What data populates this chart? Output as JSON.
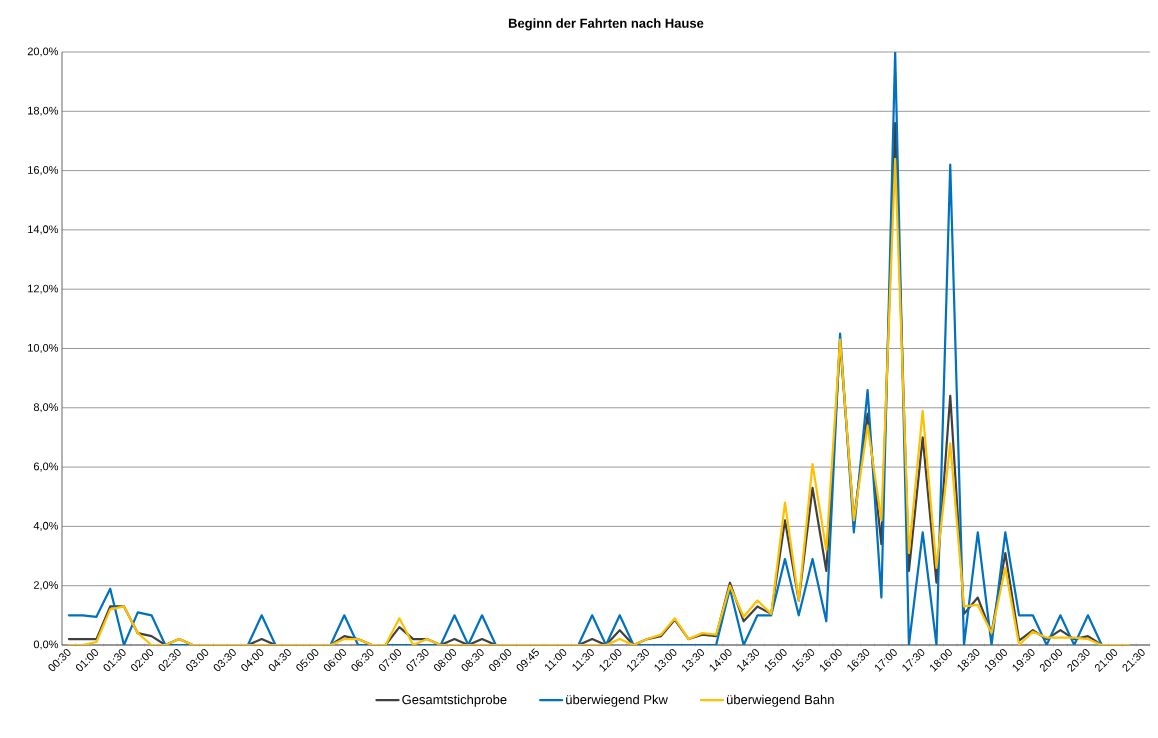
{
  "chart_data": {
    "type": "line",
    "title": "Beginn der Fahrten nach Hause",
    "categories": [
      "00:30",
      null,
      "01:00",
      null,
      "01:30",
      null,
      "02:00",
      null,
      "02:30",
      null,
      "03:00",
      null,
      "03:30",
      null,
      "04:00",
      null,
      "04:30",
      null,
      "05:00",
      null,
      "06:00",
      null,
      "06:30",
      null,
      "07:00",
      null,
      "07:30",
      null,
      "08:00",
      null,
      "08:30",
      null,
      "09:00",
      null,
      "09:45",
      null,
      "11:00",
      null,
      "11:30",
      null,
      "12:00",
      null,
      "12:30",
      null,
      "13:00",
      null,
      "13:30",
      null,
      "14:00",
      null,
      "14:30",
      null,
      "15:00",
      null,
      "15:30",
      null,
      "16:00",
      null,
      "16:30",
      null,
      "17:00",
      null,
      "17:30",
      null,
      "18:00",
      null,
      "18:30",
      null,
      "19:00",
      null,
      "19:30",
      null,
      "20:00",
      null,
      "20:30",
      null,
      "21:00",
      null,
      "21:30"
    ],
    "series": [
      {
        "name": "Gesamtstichprobe",
        "color": "#404040",
        "values": [
          0.2,
          0.2,
          0.2,
          1.3,
          1.3,
          0.4,
          0.3,
          0,
          0.2,
          0,
          0,
          0,
          0,
          0,
          0.2,
          0,
          0,
          0,
          0,
          0,
          0.3,
          0.2,
          0,
          0,
          0.6,
          0.2,
          0.2,
          0,
          0.2,
          0,
          0.2,
          0,
          0,
          0,
          0,
          0,
          0,
          0,
          0.2,
          0,
          0.5,
          0,
          0.2,
          0.3,
          0.85,
          0.2,
          0.35,
          0.3,
          2.1,
          0.8,
          1.3,
          1.05,
          4.2,
          1.5,
          5.3,
          2.5,
          10.2,
          4.2,
          7.8,
          3.4,
          17.6,
          2.5,
          7.0,
          2.1,
          8.4,
          1.05,
          1.6,
          0.4,
          3.1,
          0.15,
          0.5,
          0.2,
          0.5,
          0.2,
          0.3,
          0,
          0,
          0,
          null
        ]
      },
      {
        "name": "überwiegend Pkw",
        "color": "#0070c0",
        "values": [
          1.0,
          1.0,
          0.95,
          1.9,
          0,
          1.1,
          1.0,
          0,
          0,
          0,
          0,
          0,
          0,
          0,
          1.0,
          0,
          0,
          0,
          0,
          0,
          1.0,
          0,
          0,
          0,
          0,
          0,
          0,
          0,
          1.0,
          0,
          1.0,
          0,
          0,
          0,
          0,
          0,
          0,
          0,
          1.0,
          0,
          1.0,
          0,
          0,
          0,
          0,
          0,
          0,
          0,
          1.9,
          0,
          1.0,
          1.0,
          2.9,
          1.0,
          2.9,
          0.8,
          10.5,
          3.8,
          8.6,
          1.6,
          20.0,
          0,
          3.8,
          0,
          16.2,
          0,
          3.8,
          0,
          3.8,
          1.0,
          1.0,
          0,
          1.0,
          0,
          1.0,
          0,
          0,
          0,
          null
        ]
      },
      {
        "name": "überwiegend Bahn",
        "color": "#ffc000",
        "values": [
          0,
          0,
          0.1,
          1.2,
          1.3,
          0.4,
          0,
          0,
          0.2,
          0,
          0,
          0,
          0,
          0,
          0,
          0,
          0,
          0,
          0,
          0,
          0.2,
          0.2,
          0,
          0,
          0.9,
          0,
          0.2,
          0,
          0,
          0,
          0,
          0,
          0,
          0,
          0,
          0,
          0,
          0,
          0,
          0,
          0.2,
          0,
          0.2,
          0.35,
          0.9,
          0.2,
          0.4,
          0.35,
          2.0,
          0.95,
          1.5,
          1.05,
          4.8,
          1.5,
          6.1,
          3.2,
          10.3,
          4.2,
          7.4,
          4.2,
          16.4,
          3.1,
          7.9,
          2.6,
          6.8,
          1.3,
          1.35,
          0.4,
          2.6,
          0,
          0.45,
          0.25,
          0.25,
          0.25,
          0.2,
          0,
          0,
          0,
          null
        ]
      }
    ],
    "ylim": [
      0,
      20
    ],
    "yticks": [
      {
        "value": 0,
        "label": "0,0%"
      },
      {
        "value": 2,
        "label": "2,0%"
      },
      {
        "value": 4,
        "label": "4,0%"
      },
      {
        "value": 6,
        "label": "6,0%"
      },
      {
        "value": 8,
        "label": "8,0%"
      },
      {
        "value": 10,
        "label": "10,0%"
      },
      {
        "value": 12,
        "label": "12,0%"
      },
      {
        "value": 14,
        "label": "14,0%"
      },
      {
        "value": 16,
        "label": "16,0%"
      },
      {
        "value": 18,
        "label": "18,0%"
      },
      {
        "value": 20,
        "label": "20,0%"
      }
    ],
    "grid": "y",
    "legend": "bottom"
  }
}
